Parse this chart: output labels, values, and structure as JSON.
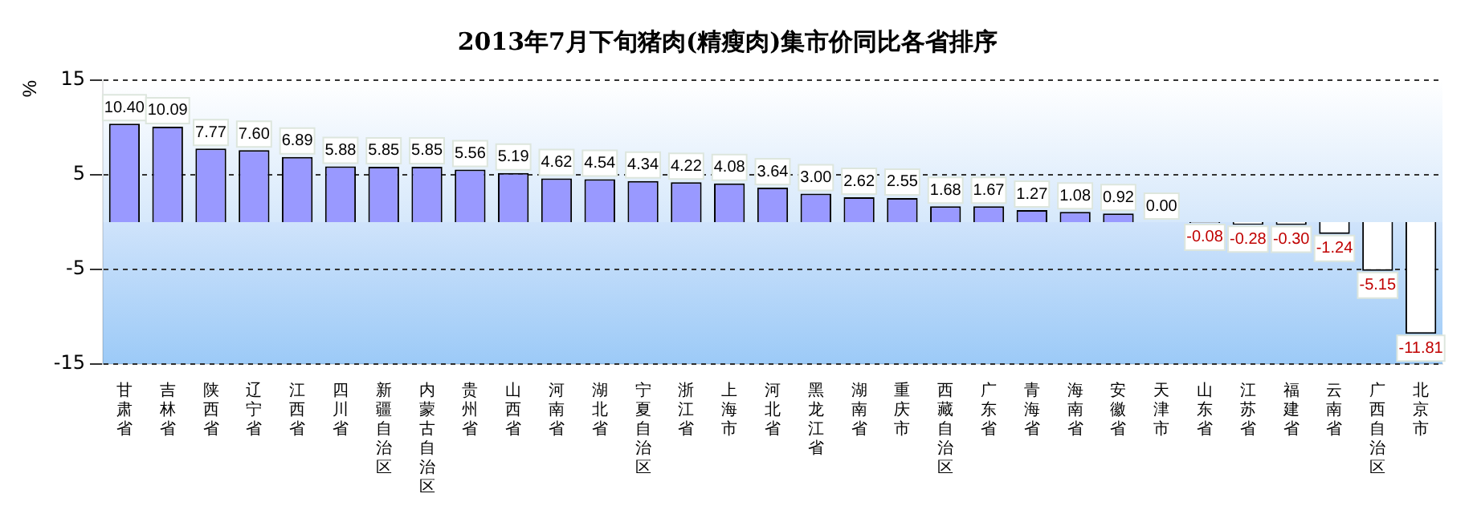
{
  "chart_data": {
    "type": "bar",
    "title": "2013年7月下旬猪肉(精瘦肉)集市价同比各省排序",
    "ylabel": "%",
    "categories": [
      "甘肃省",
      "吉林省",
      "陕西省",
      "辽宁省",
      "江西省",
      "四川省",
      "新疆自治区",
      "内蒙古自治区",
      "贵州省",
      "山西省",
      "河南省",
      "湖北省",
      "宁夏自治区",
      "浙江省",
      "上海市",
      "河北省",
      "黑龙江省",
      "湖南省",
      "重庆市",
      "西藏自治区",
      "广东省",
      "青海省",
      "海南省",
      "安徽省",
      "天津市",
      "山东省",
      "江苏省",
      "福建省",
      "云南省",
      "广西自治区",
      "北京市"
    ],
    "values": [
      10.4,
      10.09,
      7.77,
      7.6,
      6.89,
      5.88,
      5.85,
      5.85,
      5.56,
      5.19,
      4.62,
      4.54,
      4.34,
      4.22,
      4.08,
      3.64,
      3.0,
      2.62,
      2.55,
      1.68,
      1.67,
      1.27,
      1.08,
      0.92,
      0.0,
      -0.08,
      -0.28,
      -0.3,
      -1.24,
      -5.15,
      -11.81
    ],
    "value_labels": [
      "10.40",
      "10.09",
      "7.77",
      "7.60",
      "6.89",
      "5.88",
      "5.85",
      "5.85",
      "5.56",
      "5.19",
      "4.62",
      "4.54",
      "4.34",
      "4.22",
      "4.08",
      "3.64",
      "3.00",
      "2.62",
      "2.55",
      "1.68",
      "1.67",
      "1.27",
      "1.08",
      "0.92",
      "0.00",
      "-0.08",
      "-0.28",
      "-0.30",
      "-1.24",
      "-5.15",
      "-11.81"
    ],
    "colors": [
      "#9999ff",
      "#9999ff",
      "#9999ff",
      "#9999ff",
      "#9999ff",
      "#9999ff",
      "#9999ff",
      "#9999ff",
      "#9999ff",
      "#9999ff",
      "#9999ff",
      "#9999ff",
      "#9999ff",
      "#9999ff",
      "#9999ff",
      "#9999ff",
      "#9999ff",
      "#9999ff",
      "#9999ff",
      "#9999ff",
      "#9999ff",
      "#9999ff",
      "#9999ff",
      "#9999ff",
      "#9999ff",
      "#ffffff",
      "#ffffff",
      "#ffffff",
      "#ffffff",
      "#ffffff",
      "#ffffff"
    ],
    "ylim": [
      -15,
      15
    ],
    "yticks": [
      -15,
      -5,
      5,
      15
    ],
    "grid": "y",
    "legend": false
  }
}
